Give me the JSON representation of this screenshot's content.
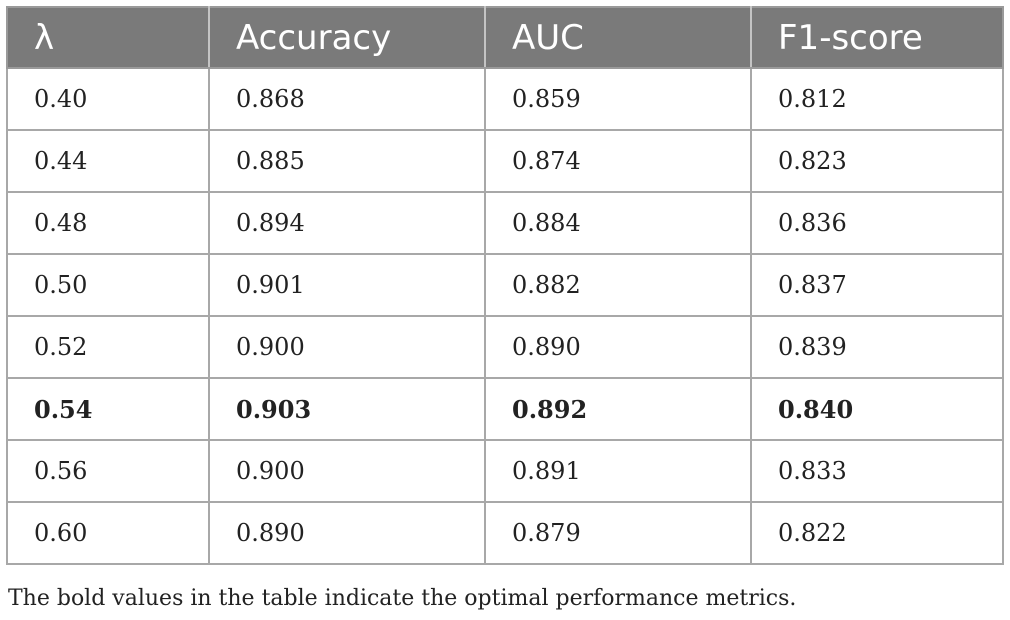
{
  "table": {
    "headers": [
      "λ",
      "Accuracy",
      "AUC",
      "F1-score"
    ],
    "rows": [
      {
        "lambda": "0.40",
        "accuracy": "0.868",
        "auc": "0.859",
        "f1": "0.812",
        "bold": false
      },
      {
        "lambda": "0.44",
        "accuracy": "0.885",
        "auc": "0.874",
        "f1": "0.823",
        "bold": false
      },
      {
        "lambda": "0.48",
        "accuracy": "0.894",
        "auc": "0.884",
        "f1": "0.836",
        "bold": false
      },
      {
        "lambda": "0.50",
        "accuracy": "0.901",
        "auc": "0.882",
        "f1": "0.837",
        "bold": false
      },
      {
        "lambda": "0.52",
        "accuracy": "0.900",
        "auc": "0.890",
        "f1": "0.839",
        "bold": false
      },
      {
        "lambda": "0.54",
        "accuracy": "0.903",
        "auc": "0.892",
        "f1": "0.840",
        "bold": true
      },
      {
        "lambda": "0.56",
        "accuracy": "0.900",
        "auc": "0.891",
        "f1": "0.833",
        "bold": false
      },
      {
        "lambda": "0.60",
        "accuracy": "0.890",
        "auc": "0.879",
        "f1": "0.822",
        "bold": false
      }
    ]
  },
  "caption": "The bold values in the table indicate the optimal performance metrics.",
  "colors": {
    "header_bg": "#7a7a7a",
    "header_text": "#ffffff",
    "grid": "#a8a8a8"
  }
}
